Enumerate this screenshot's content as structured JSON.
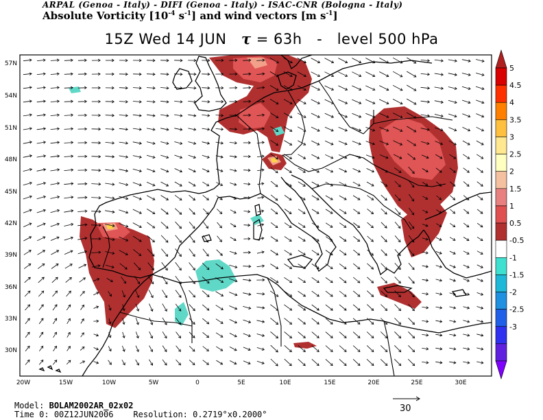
{
  "header": {
    "institutions": "ARPAL (Genoa - Italy)  -  DIFI (Genoa - Italy)  -  ISAC-CNR (Bologna - Italy)",
    "product_pre": "Absolute Vorticity [10",
    "product_exp1": "-4",
    "product_mid1": " s",
    "product_exp2": "-1",
    "product_mid2": "] and wind vectors [m s",
    "product_exp3": "-1",
    "product_post": "]"
  },
  "title": {
    "datetime": "15Z Wed 14 JUN",
    "tau_symbol": "τ",
    "tau_value": "= 63h",
    "separator": "-",
    "level": "level 500 hPa"
  },
  "map": {
    "lon_labels": [
      "20W",
      "15W",
      "10W",
      "5W",
      "0",
      "5E",
      "10E",
      "15E",
      "20E",
      "25E",
      "30E"
    ],
    "lat_labels": [
      "57N",
      "54N",
      "51N",
      "48N",
      "45N",
      "42N",
      "39N",
      "36N",
      "33N",
      "30N"
    ],
    "colors": {
      "land": "#000000",
      "border": "#000000",
      "vort_pos_1": "#b03030",
      "vort_pos_2": "#e05555",
      "vort_pos_3": "#f2a08a",
      "vort_neg_1": "#60d8c8"
    }
  },
  "colorbar": {
    "labels": [
      "5",
      "4.5",
      "4",
      "3.5",
      "3",
      "2.5",
      "2",
      "1.5",
      "1",
      "0.5",
      "-0.5",
      "-1",
      "-1.5",
      "-2",
      "-2.5",
      "-3"
    ],
    "colors": [
      "#b02020",
      "#d80000",
      "#ff3000",
      "#ff8000",
      "#ffc040",
      "#ffe890",
      "#ffffc0",
      "#f5c0a0",
      "#e88080",
      "#e05050",
      "#b03030",
      "#ffffff",
      "#40e0d0",
      "#20b8d8",
      "#2090e0",
      "#2060e8",
      "#3030f0",
      "#6020e0",
      "#8000ff"
    ]
  },
  "footer": {
    "model_label": "Model:",
    "model_value": "BOLAM2002AR_02x02",
    "time_label": "Time 0:",
    "time_value": "00Z12JUN2006",
    "resolution_label": "Resolution:",
    "resolution_value": "0.2719°x0.2000°",
    "reference_vector": "30"
  }
}
